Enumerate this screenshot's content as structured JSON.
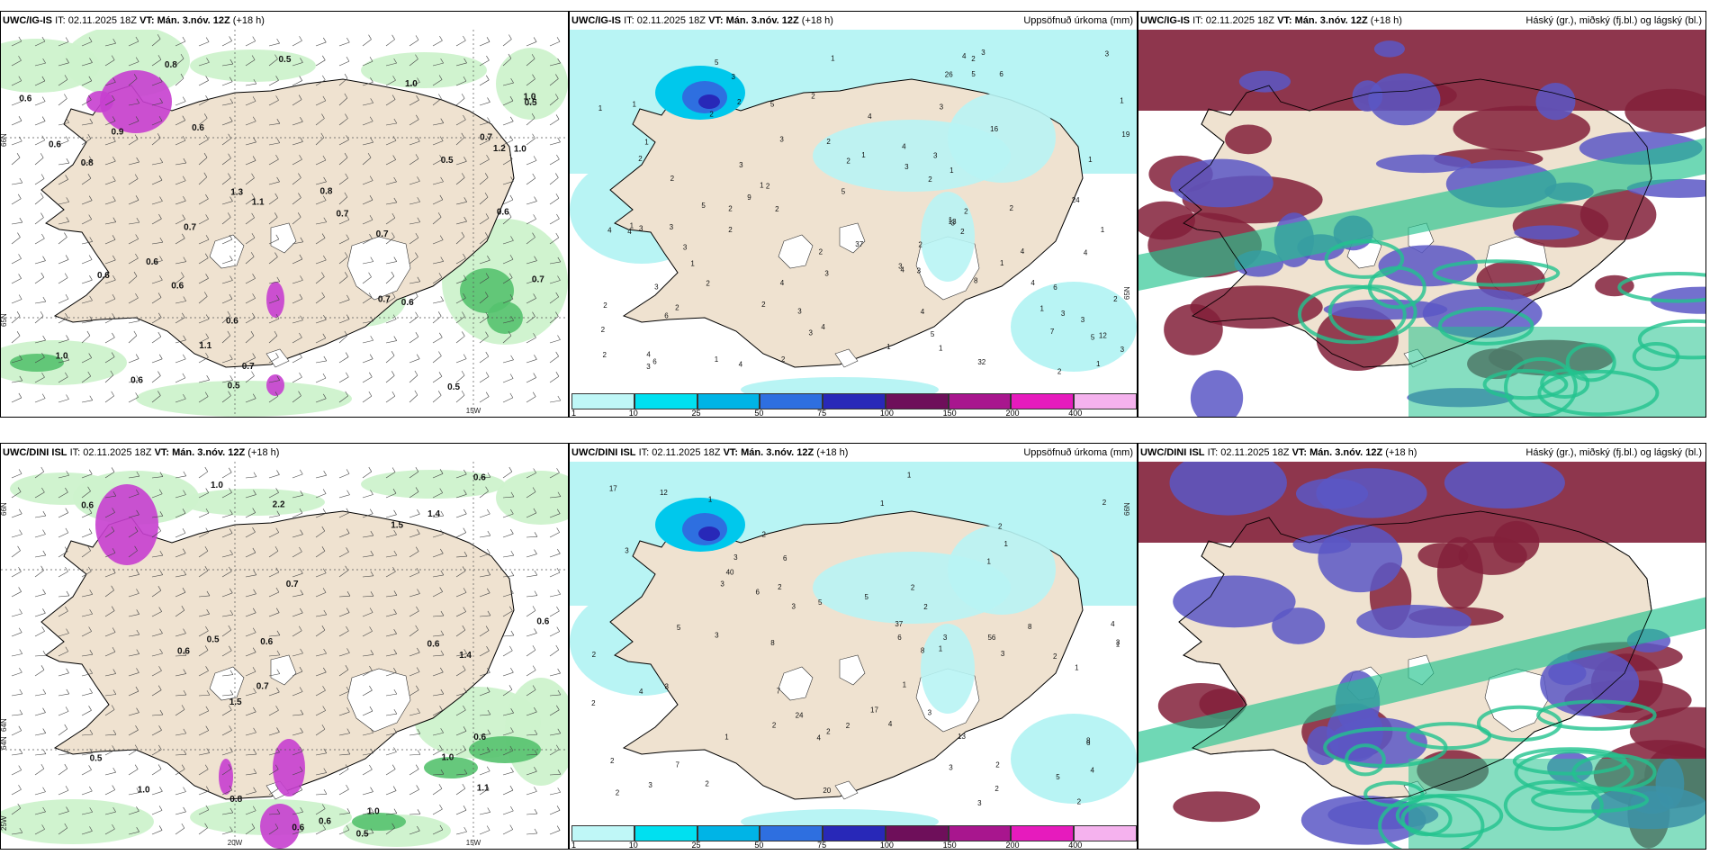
{
  "rows": [
    {
      "model_prefix": "UWC/IG-IS",
      "it_label": "IT:",
      "it_value": "02.11.2025 18Z",
      "vt_label": "VT:",
      "vt_value": "Mán. 3.nóv. 12Z",
      "lead": "(+18 h)",
      "wind_map": {
        "lon_labels": [
          "15W"
        ],
        "lat_labels": [
          "66N",
          "65N"
        ],
        "values": [
          "0.6",
          "0.6",
          "0.7",
          "0.6",
          "0.9",
          "1.0",
          "1.0",
          "0.7",
          "0.6",
          "0.5",
          "0.7",
          "0.7",
          "0.6",
          "0.7",
          "0.8",
          "0.7",
          "0.5",
          "0.6",
          "0.5",
          "0.7",
          "0.6",
          "0.8",
          "0.6",
          "1.0",
          "0.6",
          "0.5",
          "0.8",
          "1.1",
          "1.2",
          "1.1",
          "1.3",
          "1.0",
          "0.6",
          "0.5"
        ]
      },
      "precip_map": {
        "title_right": "Uppsöfnuð úrkoma (mm)",
        "lat_label": "65N",
        "values": [
          "6",
          "5",
          "3",
          "2",
          "3",
          "1",
          "3",
          "2",
          "4",
          "5",
          "6",
          "5",
          "5",
          "3",
          "5",
          "3",
          "4",
          "1",
          "2",
          "4",
          "2",
          "5",
          "13",
          "5",
          "6",
          "2",
          "3",
          "1",
          "2",
          "4",
          "3",
          "4",
          "3",
          "4",
          "1",
          "6",
          "26",
          "37",
          "24",
          "19",
          "32",
          "16",
          "4",
          "2",
          "2",
          "1",
          "3",
          "2",
          "1",
          "3",
          "4",
          "2",
          "2",
          "9",
          "3",
          "2",
          "3",
          "1",
          "4",
          "1",
          "2",
          "2",
          "4",
          "1",
          "3",
          "7",
          "2",
          "4",
          "2",
          "1",
          "3",
          "1",
          "1",
          "2",
          "2",
          "2",
          "1",
          "3",
          "3",
          "2",
          "1",
          "2",
          "3",
          "4",
          "2",
          "1",
          "2",
          "8",
          "1",
          "2",
          "2",
          "1",
          "3",
          "2",
          "3",
          "4",
          "2",
          "3",
          "3",
          "4",
          "1",
          "12",
          "3",
          "1"
        ]
      },
      "cloud_map": {
        "title_right": "Háský (gr.), miðský (fj.bl.) og lágský (bl.)"
      }
    },
    {
      "model_prefix": "UWC/DINI ISL",
      "it_label": "IT:",
      "it_value": "02.11.2025 18Z",
      "vt_label": "VT:",
      "vt_value": "Mán. 3.nóv. 12Z",
      "lead": "(+18 h)",
      "wind_map": {
        "lon_labels": [
          "20W",
          "15W"
        ],
        "lat_labels": [
          "66N",
          "64N",
          "64N",
          "25W"
        ],
        "values": [
          "0.6",
          "1.4",
          "0.5",
          "0.7",
          "0.5",
          "0.6",
          "0.6",
          "1.0",
          "1.0",
          "0.6",
          "0.7",
          "0.6",
          "0.8",
          "0.6",
          "1.0",
          "0.6",
          "0.5",
          "1.5",
          "1.1",
          "1.5",
          "2.2",
          "1.0",
          "0.6",
          "1.4",
          "0.6"
        ]
      },
      "precip_map": {
        "title_right": "Uppsöfnuð úrkoma (mm)",
        "lat_label": "66N",
        "values": [
          "8",
          "8",
          "7",
          "6",
          "5",
          "6",
          "3",
          "2",
          "2",
          "37",
          "24",
          "20",
          "40",
          "56",
          "17",
          "17",
          "3",
          "2",
          "3",
          "4",
          "12",
          "7",
          "8",
          "6",
          "2",
          "5",
          "3",
          "1",
          "1",
          "2",
          "3",
          "2",
          "1",
          "2",
          "3",
          "2",
          "1",
          "2",
          "1",
          "2",
          "3",
          "1",
          "2",
          "4",
          "3",
          "1",
          "3",
          "2",
          "1",
          "3",
          "4",
          "2",
          "6",
          "2",
          "3",
          "2",
          "1",
          "3",
          "2",
          "4",
          "5",
          "3",
          "8",
          "5",
          "4",
          "2",
          "2",
          "13",
          "1"
        ]
      },
      "cloud_map": {
        "title_right": "Háský (gr.), miðský (fj.bl.) og lágský (bl.)"
      }
    }
  ],
  "colorbar": {
    "ticks": [
      "1",
      "10",
      "25",
      "50",
      "75",
      "100",
      "150",
      "200",
      "400"
    ],
    "colors": [
      "#bff7f7",
      "#00e0f0",
      "#00b4e6",
      "#2e6fe0",
      "#2828b8",
      "#6e0f5a",
      "#a8168e",
      "#e61bbd",
      "#f5b2ee"
    ]
  },
  "map_colors": {
    "land": "#efe2d0",
    "sea_precip": "#b8f4f4",
    "light_green": "#cdf2cc",
    "mid_green": "#55c26e",
    "dark_green": "#1a7b3a",
    "magenta": "#c63fcf",
    "cloud_high": "#22c38e",
    "cloud_mid": "#5a57c6",
    "cloud_low": "#82203a"
  }
}
